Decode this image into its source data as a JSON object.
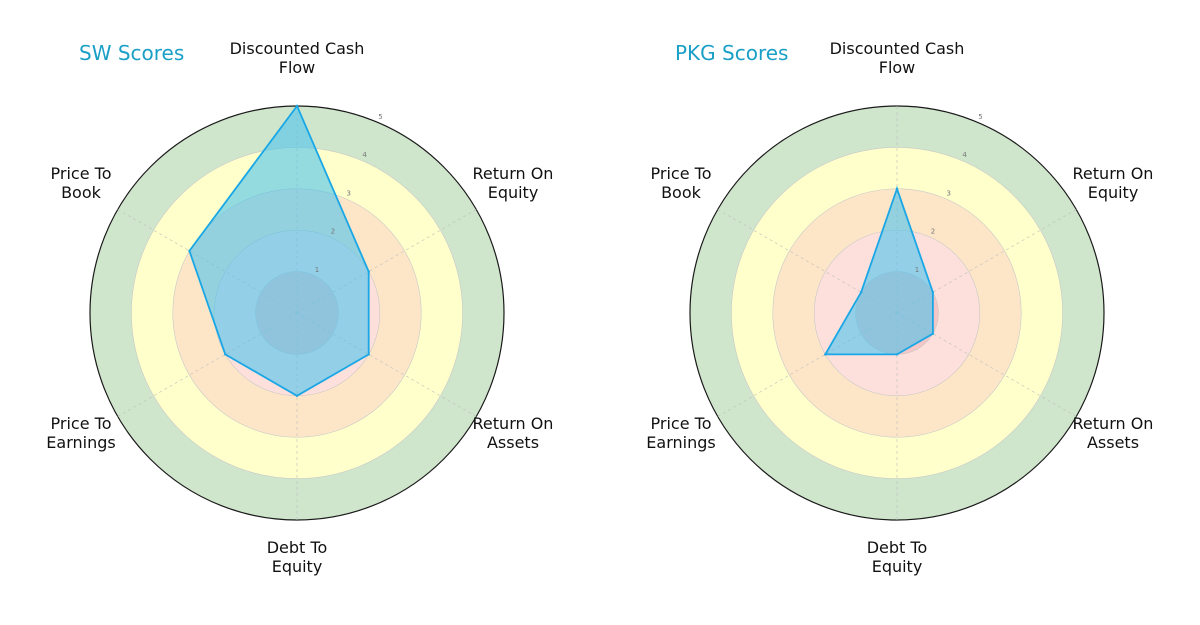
{
  "chart_data": [
    {
      "type": "radar",
      "title": "SW Scores",
      "axes": [
        "Discounted Cash Flow",
        "Return On Equity",
        "Return On Assets",
        "Debt To Equity",
        "Price To Earnings",
        "Price To Book"
      ],
      "axis_label_lines": [
        [
          "Discounted Cash",
          "Flow"
        ],
        [
          "Return On",
          "Equity"
        ],
        [
          "Return On",
          "Assets"
        ],
        [
          "Debt To",
          "Equity"
        ],
        [
          "Price To",
          "Earnings"
        ],
        [
          "Price To",
          "Book"
        ]
      ],
      "values": [
        5,
        2,
        2,
        2,
        2,
        3
      ],
      "rlim": [
        0,
        5
      ],
      "rticks": [
        "1",
        "2",
        "3",
        "4",
        "5"
      ],
      "grid": true
    },
    {
      "type": "radar",
      "title": "PKG Scores",
      "axes": [
        "Discounted Cash Flow",
        "Return On Equity",
        "Return On Assets",
        "Debt To Equity",
        "Price To Earnings",
        "Price To Book"
      ],
      "axis_label_lines": [
        [
          "Discounted Cash",
          "Flow"
        ],
        [
          "Return On",
          "Equity"
        ],
        [
          "Return On",
          "Assets"
        ],
        [
          "Debt To",
          "Equity"
        ],
        [
          "Price To",
          "Earnings"
        ],
        [
          "Price To",
          "Book"
        ]
      ],
      "values": [
        3,
        1,
        1,
        1,
        2,
        1
      ],
      "rlim": [
        0,
        5
      ],
      "rticks": [
        "1",
        "2",
        "3",
        "4",
        "5"
      ],
      "grid": true
    }
  ],
  "colors": {
    "band_very_low": "#f5c6c6",
    "band_low": "#fde0dc",
    "band_mid": "#fde6c8",
    "band_good": "#ffffcc",
    "band_high": "#d0e6cc",
    "polygon_fill": "#4dc3ec",
    "polygon_edge": "#1aa7e6",
    "title": "#1a9fc6",
    "outer_ring": "#1a1a1a"
  }
}
